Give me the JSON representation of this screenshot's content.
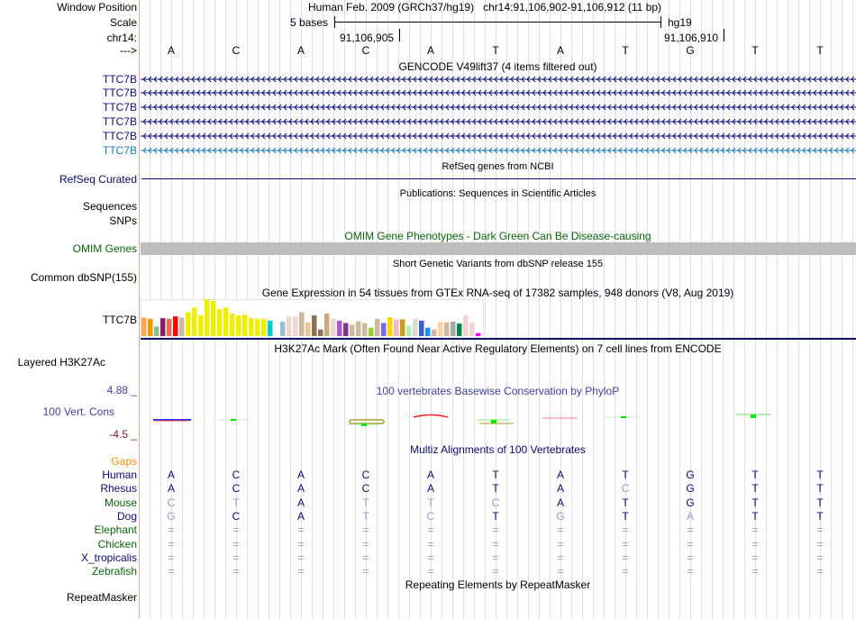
{
  "header": {
    "window_position_label": "Window Position",
    "window_position": "Human Feb. 2009 (GRCh37/hg19)   chr14:91,106,902-91,106,912 (11 bp)",
    "scale_label": "Scale",
    "scale_text": "5 bases",
    "assembly": "hg19",
    "chrom_label": "chr14:",
    "pos_ticks": [
      "91,106,905",
      "91,106,910"
    ],
    "strand_label": "--->",
    "bases": [
      "A",
      "C",
      "A",
      "C",
      "A",
      "T",
      "A",
      "T",
      "G",
      "T",
      "T"
    ]
  },
  "gencode": {
    "title": "GENCODE V49lift37 (4 items filtered out)",
    "genes": [
      "TTC7B",
      "TTC7B",
      "TTC7B",
      "TTC7B",
      "TTC7B",
      "TTC7B"
    ],
    "colors": [
      "#0c0c78",
      "#0c0c78",
      "#0c0c78",
      "#0c0c78",
      "#0c0c78",
      "#1a7ab4"
    ]
  },
  "refseq": {
    "title": "RefSeq genes from NCBI",
    "label": "RefSeq Curated"
  },
  "publications": {
    "title": "Publications: Sequences in Scientific Articles",
    "labels": [
      "Sequences",
      "SNPs"
    ]
  },
  "omim": {
    "title": "OMIM Gene Phenotypes - Dark Green Can Be Disease-causing",
    "label": "OMIM Genes"
  },
  "dbsnp": {
    "title": "Short Genetic Variants from dbSNP release 155",
    "label": "Common dbSNP(155)"
  },
  "gtex": {
    "title": "Gene Expression in 54 tissues from GTEx RNA-seq of 17382 samples, 948 donors (V8, Aug 2019)",
    "label": "TTC7B",
    "values": [
      62,
      58,
      32,
      60,
      58,
      66,
      62,
      80,
      96,
      70,
      124,
      118,
      90,
      96,
      76,
      70,
      72,
      60,
      58,
      58,
      52,
      0,
      48,
      66,
      66,
      80,
      46,
      70,
      22,
      76,
      58,
      52,
      44,
      38,
      50,
      44,
      28,
      58,
      44,
      64,
      56,
      56,
      34,
      58,
      52,
      28,
      22,
      48,
      46,
      48,
      42,
      70,
      46,
      10
    ],
    "colors": [
      "#FFA54F",
      "#EE9A00",
      "#8FBC8F",
      "#8B1C62",
      "#EE6A50",
      "#FF0000",
      "#CDB79E",
      "#EEEE00",
      "#EEEE00",
      "#EEEE00",
      "#EEEE00",
      "#EEEE00",
      "#EEEE00",
      "#EEEE00",
      "#EEEE00",
      "#EEEE00",
      "#EEEE00",
      "#EEEE00",
      "#EEEE00",
      "#EEEE00",
      "#00CDCD",
      "#CCAAFF",
      "#9AC0CD",
      "#EED5D2",
      "#EED5D2",
      "#CDB79E",
      "#EEC591",
      "#8B7355",
      "#8B7355",
      "#CDAA7D",
      "#EED5D2",
      "#B452CD",
      "#7A378B",
      "#CDB79E",
      "#CDB79E",
      "#CDB79E",
      "#9ACD32",
      "#CDB79E",
      "#7A67EE",
      "#FFD700",
      "#FFB6C1",
      "#CD9B1D",
      "#B4EEB4",
      "#D9D9D9",
      "#3A5FCD",
      "#1E90FF",
      "#CDB79E",
      "#FFD39B",
      "#CDB79E",
      "#A6A6A6",
      "#008B45",
      "#EED5D2",
      "#EED5D2",
      "#FF00FF"
    ]
  },
  "h3k27ac": {
    "title": "H3K27Ac Mark (Often Found Near Active Regulatory Elements) on 7 cell lines from ENCODE",
    "label": "Layered H3K27Ac"
  },
  "conservation": {
    "title": "100 vertebrates Basewise Conservation by PhyloP",
    "label": "100 Vert. Cons",
    "ymax": "4.88 _",
    "ymin": "-4.5 _"
  },
  "multiz": {
    "title": "Multiz Alignments of 100 Vertebrates",
    "gaps_label": "Gaps",
    "species": [
      {
        "name": "Human",
        "color": "#0a0a6e",
        "seq": [
          "A",
          "C",
          "A",
          "C",
          "A",
          "T",
          "A",
          "T",
          "G",
          "T",
          "T"
        ],
        "match": [
          1,
          1,
          1,
          1,
          1,
          1,
          1,
          1,
          1,
          1,
          1
        ]
      },
      {
        "name": "Rhesus",
        "color": "#0a0a6e",
        "seq": [
          "A",
          "C",
          "A",
          "C",
          "A",
          "T",
          "A",
          "C",
          "G",
          "T",
          "T"
        ],
        "match": [
          1,
          1,
          1,
          1,
          1,
          1,
          1,
          0,
          1,
          1,
          1
        ]
      },
      {
        "name": "Mouse",
        "color": "#0a640a",
        "seq": [
          "C",
          "T",
          "A",
          "T",
          "T",
          "C",
          "A",
          "T",
          "G",
          "T",
          "T"
        ],
        "match": [
          0,
          0,
          1,
          0,
          0,
          0,
          1,
          1,
          1,
          1,
          1
        ]
      },
      {
        "name": "Dog",
        "color": "#0a0a6e",
        "seq": [
          "G",
          "C",
          "A",
          "T",
          "C",
          "T",
          "G",
          "T",
          "A",
          "T",
          "T"
        ],
        "match": [
          0,
          1,
          1,
          0,
          0,
          1,
          0,
          1,
          0,
          1,
          1
        ]
      },
      {
        "name": "Elephant",
        "color": "#0a640a",
        "seq": [
          "=",
          "=",
          "=",
          "=",
          "=",
          "=",
          "=",
          "=",
          "=",
          "=",
          "="
        ],
        "match": [
          0,
          0,
          0,
          0,
          0,
          0,
          0,
          0,
          0,
          0,
          0
        ]
      },
      {
        "name": "Chicken",
        "color": "#0a640a",
        "seq": [
          "=",
          "=",
          "=",
          "=",
          "=",
          "=",
          "=",
          "=",
          "=",
          "=",
          "="
        ],
        "match": [
          0,
          0,
          0,
          0,
          0,
          0,
          0,
          0,
          0,
          0,
          0
        ]
      },
      {
        "name": "X_tropicalis",
        "color": "#0a0a6e",
        "seq": [
          "=",
          "=",
          "=",
          "=",
          "=",
          "=",
          "=",
          "=",
          "=",
          "=",
          "="
        ],
        "match": [
          0,
          0,
          0,
          0,
          0,
          0,
          0,
          0,
          0,
          0,
          0
        ]
      },
      {
        "name": "Zebrafish",
        "color": "#0a640a",
        "seq": [
          "=",
          "=",
          "=",
          "=",
          "=",
          "=",
          "=",
          "=",
          "=",
          "=",
          "="
        ],
        "match": [
          0,
          0,
          0,
          0,
          0,
          0,
          0,
          0,
          0,
          0,
          0
        ]
      }
    ]
  },
  "repeatmasker": {
    "title": "Repeating Elements by RepeatMasker",
    "label": "RepeatMasker"
  }
}
